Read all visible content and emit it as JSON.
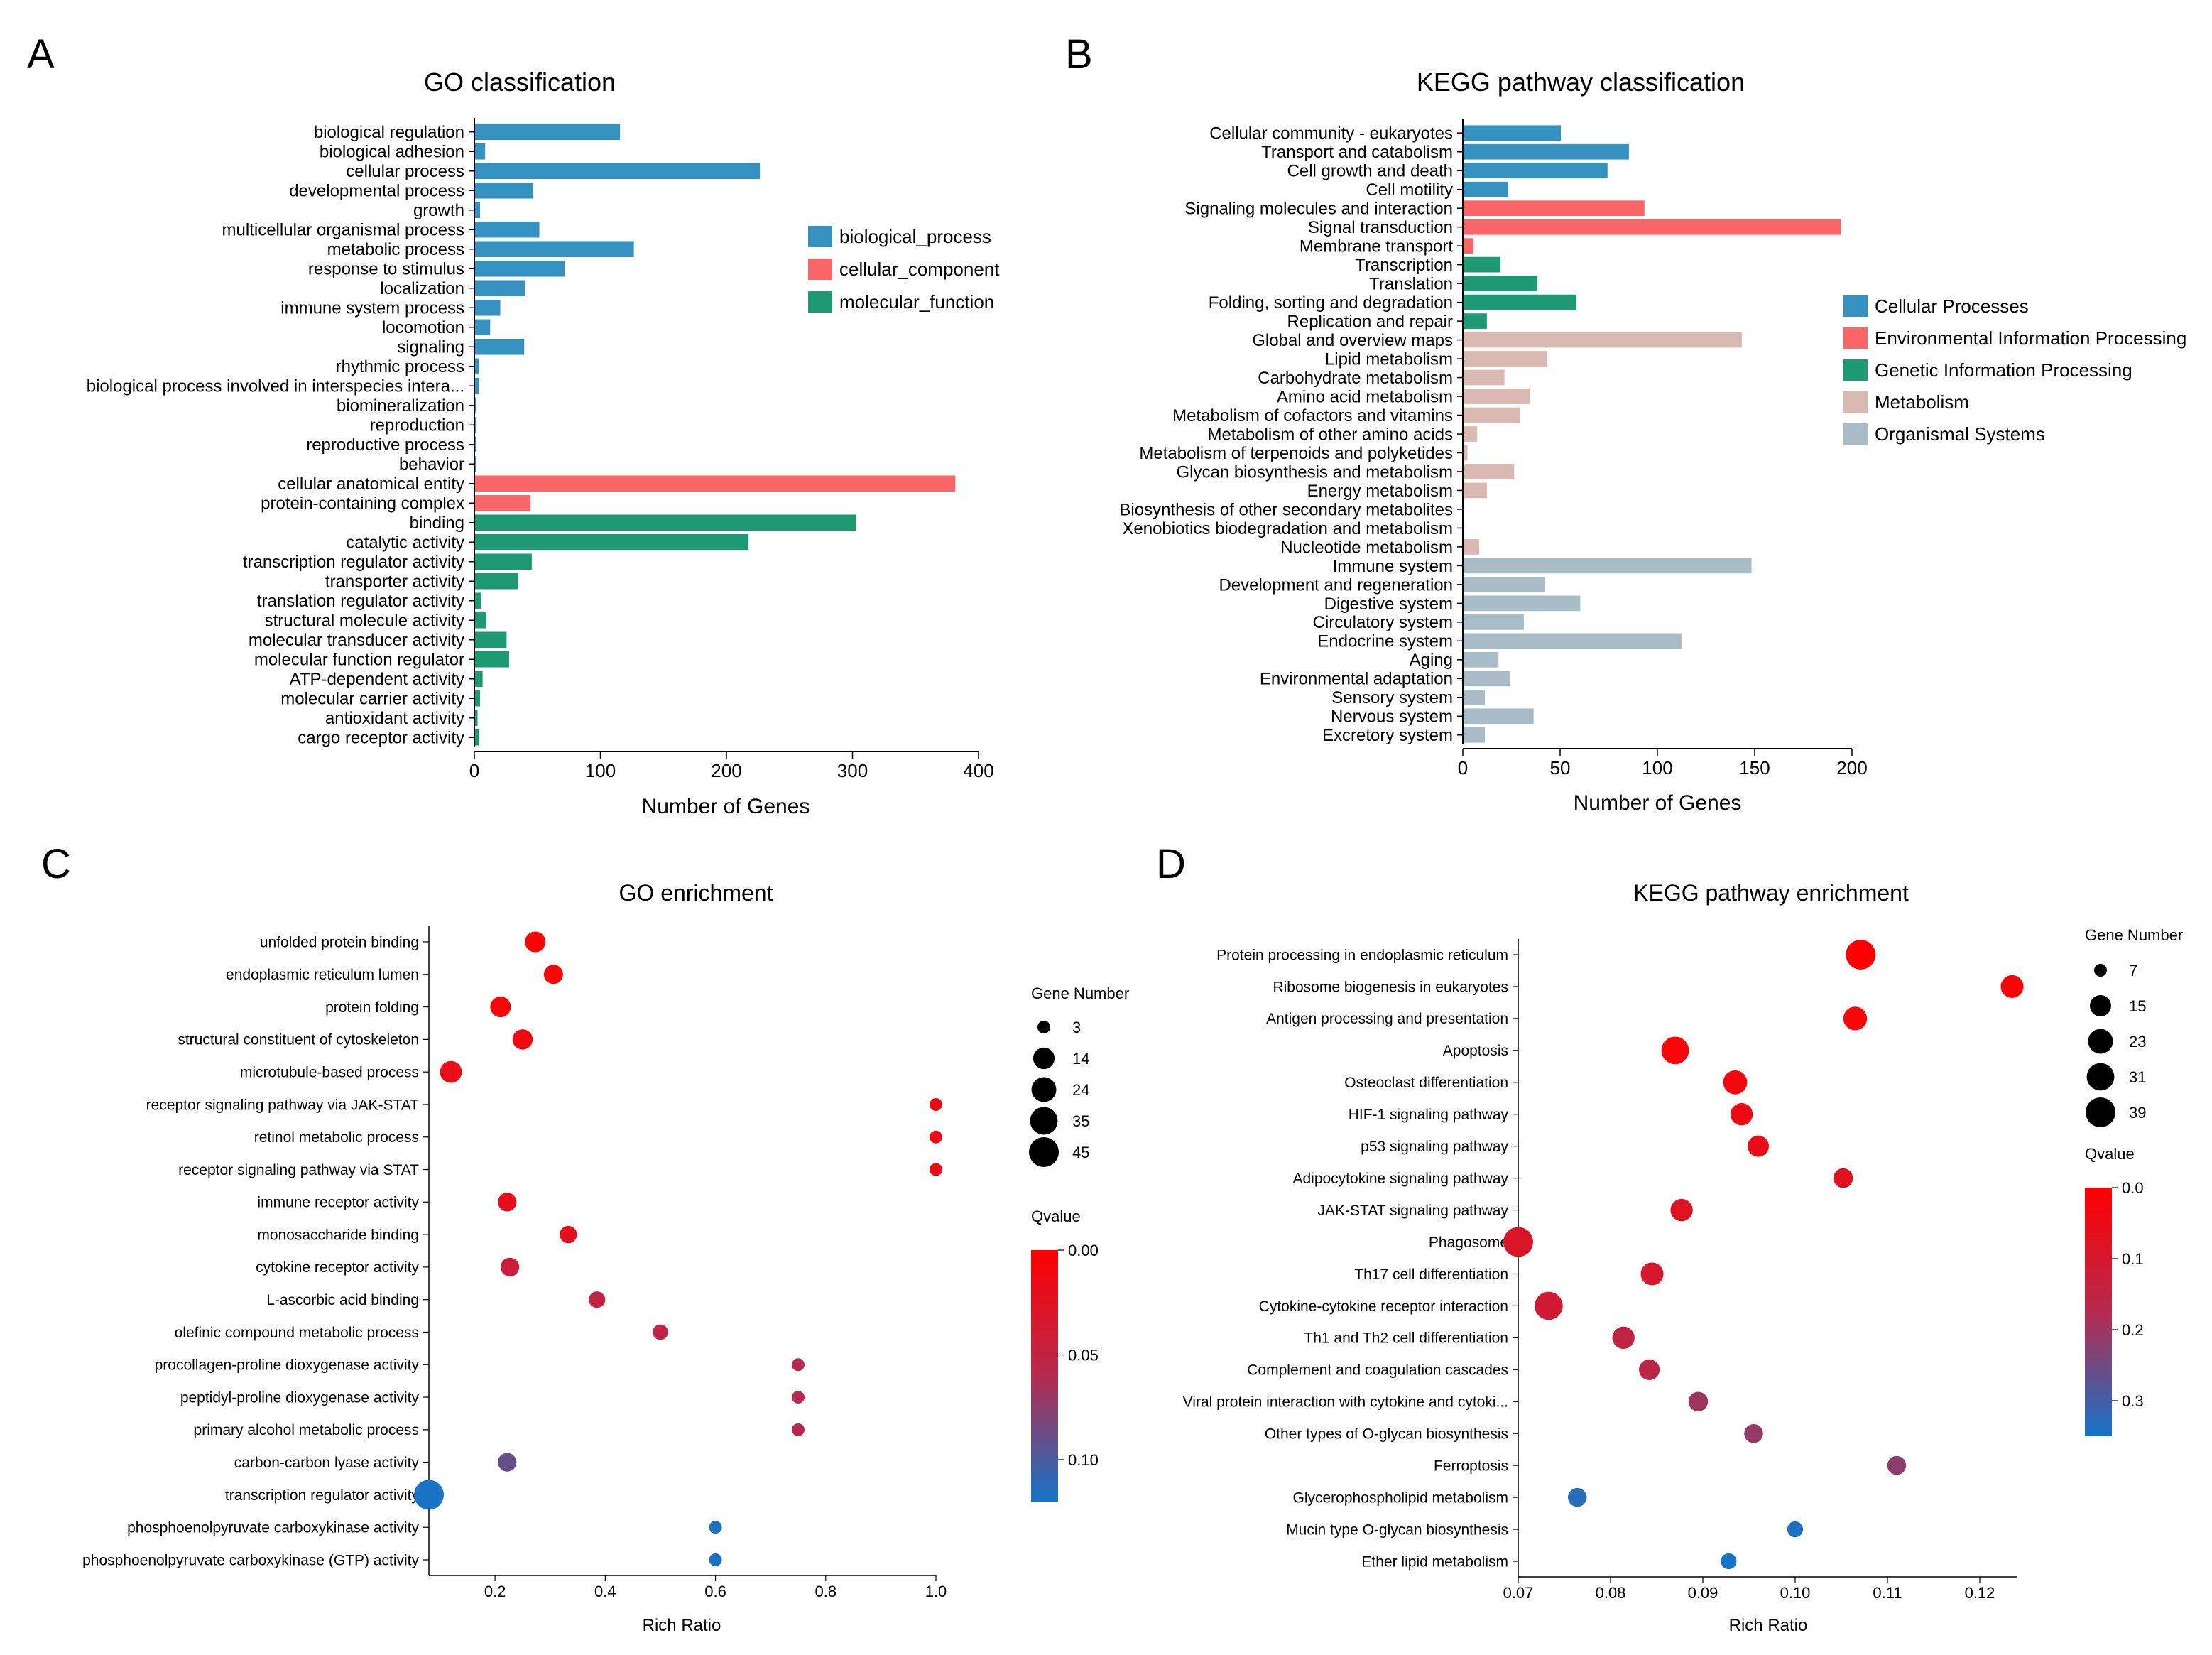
{
  "figure": {
    "panel_labels": [
      "A",
      "B",
      "C",
      "D"
    ]
  },
  "colors": {
    "biological_process": "#3591bf",
    "cellular_component": "#f96667",
    "molecular_function": "#1d9a72",
    "cellular_processes": "#3591bf",
    "environmental_information_processing": "#f96667",
    "genetic_information_processing": "#1d9a72",
    "metabolism": "#d9b9b1",
    "organismal_systems": "#a7bcc6",
    "qvalue_low": "#ff0000",
    "qvalue_mid": "#b52a4e",
    "qvalue_high": "#1474c8"
  },
  "chart_data": [
    {
      "type": "bar",
      "orientation": "horizontal",
      "panel": "A",
      "title": "GO classification",
      "xlabel": "Number of Genes",
      "ylabel": "",
      "xlim": [
        0,
        400
      ],
      "xticks": [
        0,
        100,
        200,
        300,
        400
      ],
      "legend": [
        {
          "label": "biological_process",
          "color": "#3591bf"
        },
        {
          "label": "cellular_component",
          "color": "#f96667"
        },
        {
          "label": "molecular_function",
          "color": "#1d9a72"
        }
      ],
      "legend_position": "upper-right",
      "categories": [
        "biological regulation",
        "biological adhesion",
        "cellular process",
        "developmental process",
        "growth",
        "multicellular organismal process",
        "metabolic process",
        "response to stimulus",
        "localization",
        "immune system process",
        "locomotion",
        "signaling",
        "rhythmic process",
        "biological process involved in interspecies intera...",
        "biomineralization",
        "reproduction",
        "reproductive process",
        "behavior",
        "cellular anatomical entity",
        "protein-containing complex",
        "binding",
        "catalytic activity",
        "transcription regulator activity",
        "transporter activity",
        "translation regulator activity",
        "structural molecule activity",
        "molecular transducer activity",
        "molecular function regulator",
        "ATP-dependent activity",
        "molecular carrier activity",
        "antioxidant activity",
        "cargo receptor activity"
      ],
      "values": [
        115,
        8,
        226,
        46,
        4,
        51,
        126,
        71,
        40,
        20,
        12,
        39,
        3,
        3,
        1,
        1,
        1,
        1,
        381,
        44,
        302,
        217,
        45,
        34,
        5,
        9,
        25,
        27,
        6,
        4,
        2,
        3
      ],
      "groups": [
        "biological_process",
        "biological_process",
        "biological_process",
        "biological_process",
        "biological_process",
        "biological_process",
        "biological_process",
        "biological_process",
        "biological_process",
        "biological_process",
        "biological_process",
        "biological_process",
        "biological_process",
        "biological_process",
        "biological_process",
        "biological_process",
        "biological_process",
        "biological_process",
        "cellular_component",
        "cellular_component",
        "molecular_function",
        "molecular_function",
        "molecular_function",
        "molecular_function",
        "molecular_function",
        "molecular_function",
        "molecular_function",
        "molecular_function",
        "molecular_function",
        "molecular_function",
        "molecular_function",
        "molecular_function"
      ]
    },
    {
      "type": "bar",
      "orientation": "horizontal",
      "panel": "B",
      "title": "KEGG pathway  classification",
      "xlabel": "Number of Genes",
      "ylabel": "",
      "xlim": [
        0,
        200
      ],
      "xticks": [
        0,
        50,
        100,
        150,
        200
      ],
      "legend": [
        {
          "label": "Cellular Processes",
          "color": "#3591bf"
        },
        {
          "label": "Environmental Information Processing",
          "color": "#f96667"
        },
        {
          "label": "Genetic Information Processing",
          "color": "#1d9a72"
        },
        {
          "label": "Metabolism",
          "color": "#d9b9b1"
        },
        {
          "label": "Organismal Systems",
          "color": "#a7bcc6"
        }
      ],
      "legend_position": "right",
      "categories": [
        "Cellular community - eukaryotes",
        "Transport and catabolism",
        "Cell growth and death",
        "Cell motility",
        "Signaling molecules and interaction",
        "Signal transduction",
        "Membrane transport",
        "Transcription",
        "Translation",
        "Folding, sorting and degradation",
        "Replication and repair",
        "Global and overview maps",
        "Lipid metabolism",
        "Carbohydrate metabolism",
        "Amino acid metabolism",
        "Metabolism of cofactors and vitamins",
        "Metabolism of other amino acids",
        "Metabolism of terpenoids and polyketides",
        "Glycan biosynthesis and metabolism",
        "Energy metabolism",
        "Biosynthesis of other secondary metabolites",
        "Xenobiotics biodegradation and metabolism",
        "Nucleotide metabolism",
        "Immune system",
        "Development and regeneration",
        "Digestive system",
        "Circulatory system",
        "Endocrine system",
        "Aging",
        "Environmental adaptation",
        "Sensory system",
        "Nervous system",
        "Excretory system"
      ],
      "values": [
        50,
        85,
        74,
        23,
        93,
        194,
        5,
        19,
        38,
        58,
        12,
        143,
        43,
        21,
        34,
        29,
        7,
        2,
        26,
        12,
        0,
        0,
        8,
        148,
        42,
        60,
        31,
        112,
        18,
        24,
        11,
        36,
        11
      ],
      "groups": [
        "Cellular Processes",
        "Cellular Processes",
        "Cellular Processes",
        "Cellular Processes",
        "Environmental Information Processing",
        "Environmental Information Processing",
        "Environmental Information Processing",
        "Genetic Information Processing",
        "Genetic Information Processing",
        "Genetic Information Processing",
        "Genetic Information Processing",
        "Metabolism",
        "Metabolism",
        "Metabolism",
        "Metabolism",
        "Metabolism",
        "Metabolism",
        "Metabolism",
        "Metabolism",
        "Metabolism",
        "Metabolism",
        "Metabolism",
        "Metabolism",
        "Organismal Systems",
        "Organismal Systems",
        "Organismal Systems",
        "Organismal Systems",
        "Organismal Systems",
        "Organismal Systems",
        "Organismal Systems",
        "Organismal Systems",
        "Organismal Systems",
        "Organismal Systems"
      ]
    },
    {
      "type": "scatter",
      "panel": "C",
      "title": "GO enrichment",
      "xlabel": "Rich Ratio",
      "ylabel": "",
      "xlim": [
        0.08,
        1.0
      ],
      "xticks": [
        0.2,
        0.4,
        0.6,
        0.8,
        1.0
      ],
      "xticklabels": [
        "0.2",
        "0.4",
        "0.6",
        "0.8",
        "1.0"
      ],
      "size_legend_title": "Gene Number",
      "size_legend": [
        3,
        14,
        24,
        35,
        45
      ],
      "color_legend_title": "Qvalue",
      "color_range": [
        0.0,
        0.12
      ],
      "color_ticks": [
        0.0,
        0.05,
        0.1
      ],
      "color_ticklabels": [
        "0.00",
        "0.05",
        "0.10"
      ],
      "categories": [
        "unfolded protein binding",
        "endoplasmic reticulum lumen",
        "protein folding",
        "structural constituent of cytoskeleton",
        "microtubule-based process",
        "receptor signaling pathway via JAK-STAT",
        "retinol metabolic process",
        "receptor signaling pathway via STAT",
        "immune receptor activity",
        "monosaccharide binding",
        "cytokine receptor activity",
        "L-ascorbic acid binding",
        "olefinic compound metabolic process",
        "procollagen-proline dioxygenase activity",
        "peptidyl-proline dioxygenase activity",
        "primary alcohol metabolic process",
        "carbon-carbon lyase activity",
        "transcription regulator activity",
        "phosphoenolpyruvate carboxykinase activity",
        "phosphoenolpyruvate carboxykinase (GTP) activity"
      ],
      "x": [
        0.273,
        0.306,
        0.21,
        0.25,
        0.12,
        1.0,
        1.0,
        1.0,
        0.222,
        0.333,
        0.227,
        0.385,
        0.5,
        0.75,
        0.75,
        0.75,
        0.222,
        0.08,
        0.6,
        0.6
      ],
      "gene_number": [
        12,
        9,
        12,
        11,
        15,
        3,
        3,
        3,
        8,
        6,
        8,
        5,
        4,
        3,
        3,
        3,
        8,
        45,
        3,
        3
      ],
      "qvalue": [
        0.004,
        0.005,
        0.007,
        0.012,
        0.018,
        0.014,
        0.015,
        0.016,
        0.02,
        0.022,
        0.042,
        0.05,
        0.052,
        0.058,
        0.058,
        0.058,
        0.09,
        0.118,
        0.117,
        0.117
      ]
    },
    {
      "type": "scatter",
      "panel": "D",
      "title": "KEGG pathway enrichment",
      "xlabel": "Rich Ratio",
      "ylabel": "",
      "xlim": [
        0.07,
        0.124
      ],
      "xticks": [
        0.07,
        0.08,
        0.09,
        0.1,
        0.11,
        0.12
      ],
      "xticklabels": [
        "0.07",
        "0.08",
        "0.09",
        "0.10",
        "0.11",
        "0.12"
      ],
      "size_legend_title": "Gene Number",
      "size_legend": [
        7,
        15,
        23,
        31,
        39
      ],
      "color_legend_title": "Qvalue",
      "color_range": [
        0.0,
        0.35
      ],
      "color_ticks": [
        0.0,
        0.1,
        0.2,
        0.3
      ],
      "color_ticklabels": [
        "0.0",
        "0.1",
        "0.2",
        "0.3"
      ],
      "categories": [
        "Protein processing in endoplasmic reticulum",
        "Ribosome biogenesis in eukaryotes",
        "Antigen processing and presentation",
        "Apoptosis",
        "Osteoclast differentiation",
        "HIF-1 signaling pathway",
        "p53 signaling pathway",
        "Adipocytokine signaling pathway",
        "JAK-STAT signaling pathway",
        "Phagosome",
        "Th17 cell differentiation",
        "Cytokine-cytokine receptor interaction",
        "Th1 and Th2 cell differentiation",
        "Complement and coagulation cascades",
        "Viral protein interaction with cytokine and cytoki...",
        "Other types of O-glycan biosynthesis",
        "Ferroptosis",
        "Glycerophospholipid metabolism",
        "Mucin type O-glycan biosynthesis",
        "Ether lipid metabolism"
      ],
      "x": [
        0.1071,
        0.1235,
        0.1065,
        0.087,
        0.0935,
        0.0942,
        0.096,
        0.1052,
        0.0877,
        0.07,
        0.0845,
        0.0733,
        0.0814,
        0.0842,
        0.0895,
        0.0955,
        0.111,
        0.0764,
        0.1,
        0.0928
      ],
      "gene_number": [
        39,
        18,
        20,
        31,
        21,
        17,
        15,
        12,
        17,
        39,
        18,
        33,
        17,
        14,
        12,
        11,
        11,
        11,
        8,
        8
      ],
      "qvalue": [
        0.0,
        0.01,
        0.015,
        0.02,
        0.03,
        0.04,
        0.05,
        0.07,
        0.075,
        0.09,
        0.1,
        0.11,
        0.15,
        0.16,
        0.2,
        0.21,
        0.22,
        0.33,
        0.34,
        0.35
      ]
    }
  ]
}
